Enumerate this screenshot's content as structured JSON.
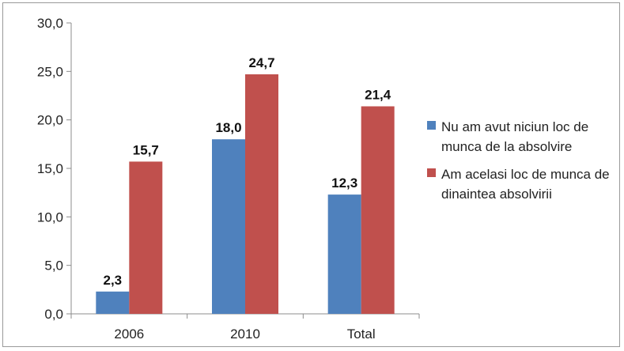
{
  "chart_data": {
    "type": "bar",
    "categories": [
      "2006",
      "2010",
      "Total"
    ],
    "series": [
      {
        "name": "Nu am avut niciun loc de munca de la absolvire",
        "values": [
          2.3,
          18.0,
          12.3
        ],
        "color": "#4f81bd",
        "labels": [
          "2,3",
          "18,0",
          "12,3"
        ]
      },
      {
        "name": "Am acelasi loc de munca de dinaintea absolvirii",
        "values": [
          15.7,
          24.7,
          21.4
        ],
        "color": "#c0504d",
        "labels": [
          "15,7",
          "24,7",
          "21,4"
        ]
      }
    ],
    "ylim": [
      0,
      30
    ],
    "yticks": [
      "0,0",
      "5,0",
      "10,0",
      "15,0",
      "20,0",
      "25,0",
      "30,0"
    ],
    "ytick_values": [
      0,
      5,
      10,
      15,
      20,
      25,
      30
    ],
    "grid": false,
    "legend": "right",
    "title": "",
    "xlabel": "",
    "ylabel": ""
  }
}
